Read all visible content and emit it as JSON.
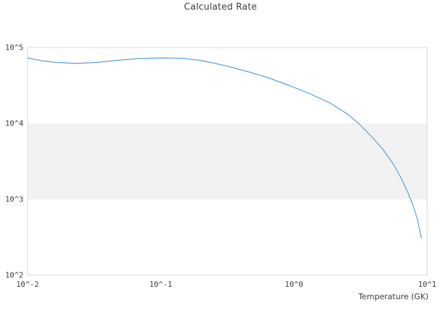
{
  "chart_data": {
    "type": "line",
    "title": "Calculated Rate",
    "xlabel": "Temperature (GK)",
    "ylabel": "",
    "xscale": "log",
    "yscale": "log",
    "xlim": [
      0.01,
      10
    ],
    "ylim": [
      100,
      100000
    ],
    "grid": "alternating-band",
    "legend": "none",
    "xticks": {
      "values": [
        0.01,
        0.1,
        1,
        10
      ],
      "labels": [
        "10^-2",
        "10^-1",
        "10^0",
        "10^1"
      ]
    },
    "yticks": {
      "values": [
        100,
        1000,
        10000,
        100000
      ],
      "labels": [
        "10^2",
        "10^3",
        "10^4",
        "10^5"
      ]
    },
    "bands": [
      {
        "from": 1000,
        "to": 10000
      }
    ],
    "colors": {
      "line": "#559bd5",
      "band": "#f2f2f2",
      "border": "#d9d9d9",
      "text": "#3c3c3c",
      "background": "#ffffff"
    },
    "series": [
      {
        "name": "calculated_rate",
        "x": [
          0.01,
          0.0127,
          0.0161,
          0.0231,
          0.0331,
          0.0471,
          0.0674,
          0.102,
          0.146,
          0.196,
          0.249,
          0.316,
          0.452,
          0.646,
          0.923,
          1.32,
          1.89,
          2.55,
          3.09,
          3.87,
          4.62,
          5.53,
          6.37,
          7.18,
          7.83,
          8.43,
          9.04
        ],
        "y": [
          73100,
          67200,
          63800,
          61800,
          63800,
          67900,
          71600,
          73100,
          72300,
          67900,
          62400,
          56900,
          48100,
          39800,
          31600,
          24600,
          18400,
          13100,
          9800,
          6580,
          4610,
          2970,
          1910,
          1210,
          828,
          545,
          310
        ]
      }
    ]
  }
}
